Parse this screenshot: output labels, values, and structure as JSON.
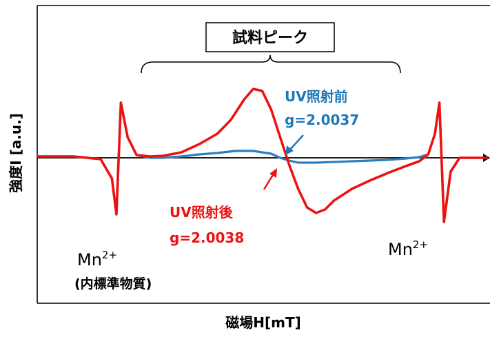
{
  "chart_data": {
    "type": "line",
    "title": "",
    "xlabel": "磁場H[mT]",
    "ylabel": "強度I [a.u.]",
    "xlim": [
      0,
      100
    ],
    "ylim": [
      -1.6,
      1.6
    ],
    "grid": false,
    "legend": "none",
    "series": [
      {
        "name": "UV照射前",
        "color": "#2a7fc0",
        "x": [
          0,
          8,
          14,
          16.5,
          17.5,
          18.5,
          20,
          22,
          25,
          28,
          32,
          36,
          40,
          44,
          48,
          52,
          54,
          56,
          58,
          62,
          66,
          70,
          74,
          78,
          82,
          85,
          87,
          88.5,
          89.5,
          90.5,
          92,
          94,
          97,
          100
        ],
        "y": [
          0.02,
          0.02,
          -0.02,
          -0.3,
          -0.82,
          0.8,
          0.3,
          0.04,
          0.0,
          0.0,
          0.02,
          0.05,
          0.07,
          0.1,
          0.1,
          0.06,
          0.0,
          -0.04,
          -0.07,
          -0.07,
          -0.06,
          -0.05,
          -0.04,
          -0.03,
          -0.01,
          0.01,
          0.05,
          0.35,
          0.8,
          -0.93,
          -0.2,
          0.0,
          0.0,
          0.0
        ]
      },
      {
        "name": "UV照射後",
        "color": "#ee1111",
        "x": [
          0,
          8,
          14,
          16.5,
          17.5,
          18.5,
          20,
          22,
          25,
          28,
          32,
          36,
          40,
          43,
          46,
          48,
          50,
          52,
          54,
          56,
          58,
          60,
          62,
          64,
          66,
          70,
          74,
          78,
          82,
          85,
          87,
          88.5,
          89.5,
          90.5,
          92,
          94,
          97,
          100
        ],
        "y": [
          0.02,
          0.02,
          -0.02,
          -0.3,
          -0.82,
          0.8,
          0.3,
          0.04,
          0.02,
          0.03,
          0.08,
          0.2,
          0.35,
          0.55,
          0.85,
          1.0,
          0.97,
          0.7,
          0.3,
          -0.1,
          -0.45,
          -0.72,
          -0.8,
          -0.75,
          -0.62,
          -0.45,
          -0.33,
          -0.22,
          -0.12,
          -0.05,
          0.05,
          0.35,
          0.8,
          -0.93,
          -0.2,
          0.0,
          0.0,
          0.0
        ]
      }
    ]
  },
  "annotations": {
    "bracket_label": "試料ピーク",
    "before_name": "UV照射前",
    "before_g": "g=2.0037",
    "after_name": "UV照射後",
    "after_g": "g=2.0038",
    "mn_base": "Mn",
    "mn_sup": "2+",
    "standard_note": "(内標準物質)"
  }
}
